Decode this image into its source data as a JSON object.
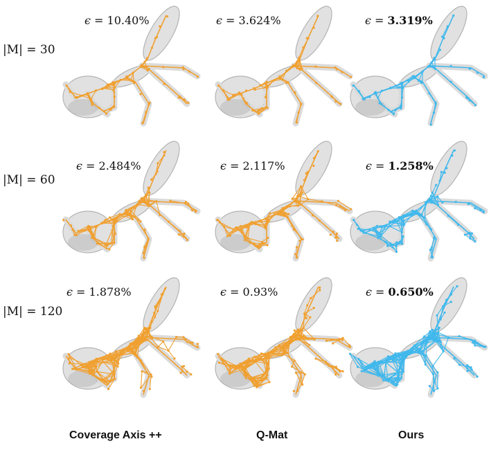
{
  "rows": [
    {
      "label": "|M| = 30",
      "eps": [
        "10.40%",
        "3.624%",
        "3.319%"
      ]
    },
    {
      "label": "|M| = 60",
      "eps": [
        "2.484%",
        "2.117%",
        "1.258%"
      ]
    },
    {
      "label": "|M| = 120",
      "eps": [
        "1.878%",
        "0.93%",
        "0.650%"
      ]
    }
  ],
  "epsilon_symbol": "ϵ =",
  "columns": [
    "Coverage Axis ++",
    "Q-Mat",
    "Ours"
  ],
  "colors": {
    "orange": "#f0a030",
    "blue": "#40b8ec",
    "shape_fill": "#d8d8d8",
    "shape_stroke": "#9a9a9a"
  }
}
